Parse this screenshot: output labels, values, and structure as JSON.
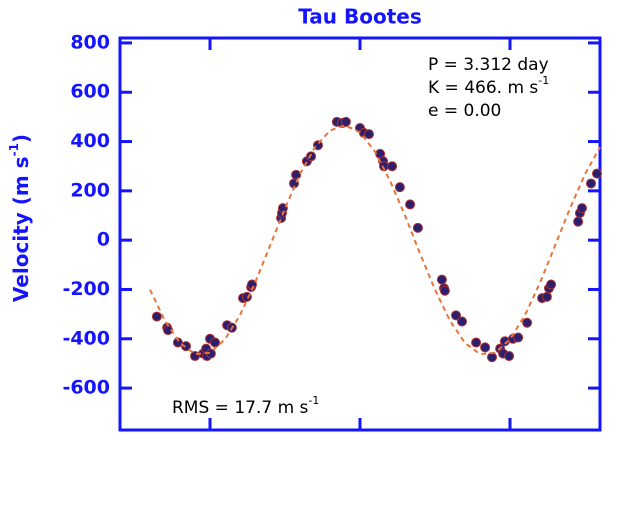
{
  "chart_data": {
    "type": "scatter",
    "title": "Tau Bootes",
    "ylabel": {
      "text": "Velocity  (m s",
      "sup": "-1",
      "close": ")"
    },
    "annotations": [
      {
        "text": "P = 3.312 day"
      },
      {
        "text": "K = 466. m s",
        "sup": "-1"
      },
      {
        "text": "e = 0.00"
      },
      {
        "text": "RMS = 17.7 m s",
        "sup": "-1"
      }
    ],
    "xlim": [
      0,
      1.6
    ],
    "xticks": [
      0.3,
      0.8,
      1.3
    ],
    "ylim": [
      -770,
      820
    ],
    "yticks": [
      -600,
      -400,
      -200,
      0,
      200,
      400,
      600,
      800
    ],
    "axis_color": "#1414ff",
    "series": [
      {
        "kind": "points",
        "color": "#2b1f6e",
        "edge": "#b03030",
        "x": [
          0.123,
          0.157,
          0.16,
          0.193,
          0.22,
          0.25,
          0.277,
          0.287,
          0.29,
          0.3,
          0.303,
          0.317,
          0.357,
          0.373,
          0.41,
          0.423,
          0.437,
          0.44,
          0.537,
          0.54,
          0.543,
          0.58,
          0.587,
          0.623,
          0.637,
          0.66,
          0.723,
          0.74,
          0.753,
          0.8,
          0.813,
          0.83,
          0.867,
          0.877,
          0.88,
          0.907,
          0.933,
          0.967,
          0.993,
          1.073,
          1.08,
          1.083,
          1.12,
          1.14,
          1.187,
          1.217,
          1.24,
          1.267,
          1.277,
          1.283,
          1.297,
          1.31,
          1.327,
          1.357,
          1.407,
          1.423,
          1.43,
          1.437,
          1.527,
          1.533,
          1.54,
          1.57,
          1.59
        ],
        "values": [
          -310,
          -355,
          -365,
          -415,
          -430,
          -470,
          -460,
          -440,
          -470,
          -400,
          -460,
          -415,
          -345,
          -355,
          -235,
          -230,
          -190,
          -180,
          90,
          110,
          130,
          230,
          265,
          320,
          340,
          385,
          480,
          475,
          480,
          455,
          435,
          430,
          350,
          320,
          300,
          300,
          215,
          145,
          50,
          -160,
          -195,
          -205,
          -305,
          -330,
          -415,
          -435,
          -475,
          -440,
          -460,
          -410,
          -470,
          -400,
          -395,
          -335,
          -235,
          -230,
          -195,
          -180,
          75,
          110,
          130,
          230,
          270
        ]
      },
      {
        "kind": "curve",
        "color": "#e8743b",
        "x": [
          0.1,
          0.15,
          0.2,
          0.25,
          0.3,
          0.35,
          0.4,
          0.45,
          0.5,
          0.55,
          0.6,
          0.65,
          0.7,
          0.75,
          0.8,
          0.85,
          0.9,
          0.95,
          1.0,
          1.05,
          1.1,
          1.15,
          1.2,
          1.25,
          1.3,
          1.35,
          1.4,
          1.45,
          1.5,
          1.55,
          1.6
        ],
        "values": [
          -201,
          -327,
          -417,
          -462,
          -457,
          -402,
          -304,
          -173,
          -23,
          129,
          268,
          377,
          445,
          466,
          437,
          359,
          241,
          100,
          -54,
          -201,
          -327,
          -417,
          -462,
          -457,
          -402,
          -304,
          -173,
          -23,
          129,
          268,
          377
        ]
      }
    ]
  }
}
